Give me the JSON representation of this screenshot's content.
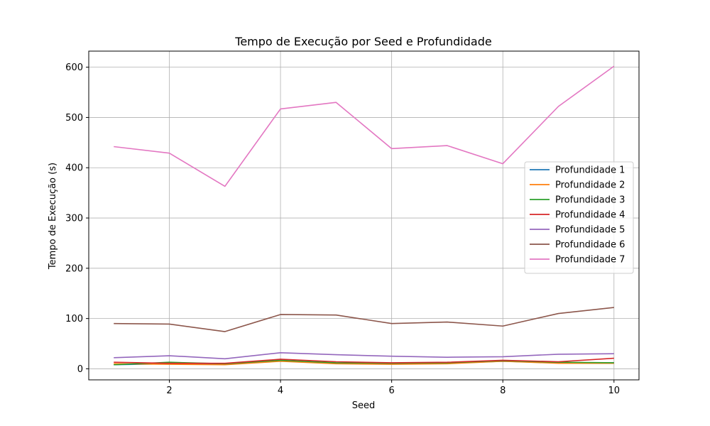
{
  "chart_data": {
    "type": "line",
    "title": "Tempo de Execução por Seed e Profundidade",
    "xlabel": "Seed",
    "ylabel": "Tempo de Execução (s)",
    "xlim": [
      0.55,
      10.45
    ],
    "ylim": [
      -22,
      632
    ],
    "xticks": [
      2,
      4,
      6,
      8,
      10
    ],
    "yticks": [
      0,
      100,
      200,
      300,
      400,
      500,
      600
    ],
    "grid": true,
    "legend_position": "center-right",
    "x": [
      1,
      2,
      3,
      4,
      5,
      6,
      7,
      8,
      9,
      10
    ],
    "series": [
      {
        "name": "Profundidade 1",
        "color": "#1f77b4",
        "values": [
          8,
          10,
          9,
          16,
          11,
          10,
          11,
          15,
          12,
          12
        ]
      },
      {
        "name": "Profundidade 2",
        "color": "#ff7f0e",
        "values": [
          10,
          9,
          8,
          15,
          10,
          9,
          10,
          15,
          11,
          11
        ]
      },
      {
        "name": "Profundidade 3",
        "color": "#2ca02c",
        "values": [
          8,
          13,
          10,
          17,
          12,
          11,
          12,
          16,
          13,
          12
        ]
      },
      {
        "name": "Profundidade 4",
        "color": "#d62728",
        "values": [
          13,
          11,
          11,
          19,
          14,
          12,
          13,
          17,
          14,
          21
        ]
      },
      {
        "name": "Profundidade 5",
        "color": "#9467bd",
        "values": [
          22,
          26,
          20,
          32,
          28,
          25,
          23,
          24,
          29,
          30
        ]
      },
      {
        "name": "Profundidade 6",
        "color": "#8c564b",
        "values": [
          90,
          89,
          74,
          108,
          107,
          90,
          93,
          85,
          110,
          122
        ]
      },
      {
        "name": "Profundidade 7",
        "color": "#e377c2",
        "values": [
          442,
          429,
          363,
          517,
          530,
          438,
          444,
          408,
          522,
          602
        ]
      }
    ]
  }
}
